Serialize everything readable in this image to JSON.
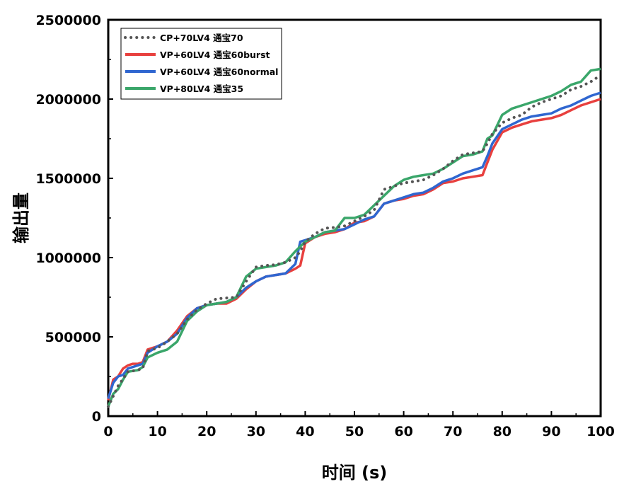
{
  "chart_data": {
    "type": "line",
    "xlabel": "时间 (s)",
    "ylabel": "输出量",
    "xlim": [
      0,
      100
    ],
    "ylim": [
      0,
      2500000
    ],
    "xticks": [
      "0",
      "10",
      "20",
      "30",
      "40",
      "50",
      "60",
      "70",
      "80",
      "90",
      "100"
    ],
    "yticks": [
      "0",
      "500000",
      "1000000",
      "1500000",
      "2000000",
      "2500000"
    ],
    "grid": false,
    "legend_position": "top-left",
    "series": [
      {
        "name": "CP+70LV4 通宝70",
        "color": "#555555",
        "style": "dotted",
        "x": [
          0,
          2,
          4,
          6,
          7,
          8,
          10,
          12,
          14,
          16,
          18,
          20,
          22,
          24,
          26,
          28,
          30,
          32,
          34,
          36,
          38,
          39,
          40,
          42,
          44,
          46,
          48,
          50,
          52,
          54,
          56,
          58,
          60,
          62,
          64,
          66,
          68,
          70,
          72,
          74,
          76,
          77,
          78,
          80,
          82,
          84,
          86,
          88,
          90,
          92,
          94,
          96,
          98,
          100
        ],
        "y": [
          60000,
          190000,
          280000,
          290000,
          300000,
          410000,
          430000,
          470000,
          520000,
          610000,
          670000,
          710000,
          740000,
          745000,
          750000,
          850000,
          940000,
          950000,
          955000,
          970000,
          1000000,
          1040000,
          1100000,
          1150000,
          1185000,
          1190000,
          1200000,
          1230000,
          1260000,
          1300000,
          1430000,
          1450000,
          1470000,
          1480000,
          1490000,
          1520000,
          1560000,
          1610000,
          1650000,
          1660000,
          1670000,
          1720000,
          1780000,
          1850000,
          1880000,
          1900000,
          1950000,
          1980000,
          2000000,
          2020000,
          2060000,
          2080000,
          2110000,
          2150000
        ]
      },
      {
        "name": "VP+60LV4 通宝60burst",
        "color": "#e8403e",
        "style": "solid",
        "x": [
          0,
          1,
          2,
          3,
          4,
          5,
          6,
          7,
          8,
          10,
          12,
          14,
          16,
          18,
          20,
          22,
          24,
          26,
          28,
          30,
          32,
          34,
          36,
          38,
          39,
          40,
          42,
          44,
          46,
          48,
          50,
          52,
          54,
          56,
          58,
          60,
          62,
          64,
          66,
          68,
          70,
          72,
          74,
          76,
          77,
          78,
          80,
          82,
          84,
          86,
          88,
          90,
          92,
          94,
          96,
          98,
          100
        ],
        "y": [
          100000,
          230000,
          250000,
          300000,
          320000,
          330000,
          330000,
          340000,
          420000,
          440000,
          470000,
          540000,
          630000,
          680000,
          700000,
          710000,
          710000,
          740000,
          800000,
          850000,
          880000,
          890000,
          900000,
          930000,
          950000,
          1090000,
          1130000,
          1150000,
          1160000,
          1180000,
          1220000,
          1230000,
          1260000,
          1340000,
          1360000,
          1370000,
          1390000,
          1400000,
          1430000,
          1470000,
          1480000,
          1500000,
          1510000,
          1520000,
          1600000,
          1680000,
          1790000,
          1820000,
          1840000,
          1860000,
          1870000,
          1880000,
          1900000,
          1930000,
          1960000,
          1980000,
          2000000
        ]
      },
      {
        "name": "VP+60LV4 通宝60normal",
        "color": "#2f66d0",
        "style": "solid",
        "x": [
          0,
          1,
          2,
          3,
          4,
          6,
          7,
          8,
          10,
          12,
          14,
          16,
          18,
          20,
          22,
          24,
          26,
          28,
          30,
          32,
          34,
          36,
          38,
          39,
          40,
          42,
          44,
          46,
          48,
          50,
          52,
          54,
          56,
          58,
          60,
          62,
          64,
          66,
          68,
          70,
          72,
          74,
          76,
          77,
          78,
          80,
          82,
          84,
          86,
          88,
          90,
          92,
          94,
          96,
          98,
          100
        ],
        "y": [
          110000,
          210000,
          250000,
          260000,
          300000,
          320000,
          330000,
          400000,
          440000,
          470000,
          520000,
          620000,
          680000,
          700000,
          710000,
          720000,
          750000,
          810000,
          850000,
          880000,
          890000,
          900000,
          960000,
          1100000,
          1110000,
          1130000,
          1160000,
          1170000,
          1180000,
          1210000,
          1240000,
          1260000,
          1340000,
          1360000,
          1380000,
          1400000,
          1410000,
          1440000,
          1480000,
          1500000,
          1530000,
          1550000,
          1570000,
          1640000,
          1720000,
          1810000,
          1840000,
          1870000,
          1890000,
          1900000,
          1910000,
          1940000,
          1960000,
          1990000,
          2020000,
          2040000
        ]
      },
      {
        "name": "VP+80LV4 通宝35",
        "color": "#3aa66a",
        "style": "solid",
        "x": [
          0,
          1,
          2,
          3,
          4,
          6,
          7,
          8,
          10,
          12,
          14,
          16,
          18,
          20,
          22,
          24,
          26,
          28,
          30,
          32,
          34,
          36,
          38,
          40,
          42,
          44,
          46,
          48,
          50,
          52,
          54,
          56,
          58,
          60,
          62,
          64,
          66,
          68,
          70,
          72,
          74,
          76,
          77,
          78,
          80,
          82,
          84,
          86,
          88,
          90,
          92,
          94,
          96,
          98,
          100
        ],
        "y": [
          60000,
          140000,
          170000,
          230000,
          280000,
          290000,
          310000,
          370000,
          400000,
          420000,
          470000,
          600000,
          660000,
          700000,
          710000,
          720000,
          750000,
          880000,
          930000,
          940000,
          950000,
          970000,
          1040000,
          1100000,
          1130000,
          1160000,
          1170000,
          1250000,
          1250000,
          1270000,
          1330000,
          1390000,
          1450000,
          1490000,
          1510000,
          1520000,
          1530000,
          1560000,
          1600000,
          1640000,
          1650000,
          1670000,
          1750000,
          1770000,
          1900000,
          1940000,
          1960000,
          1980000,
          2000000,
          2020000,
          2050000,
          2090000,
          2110000,
          2180000,
          2190000
        ]
      }
    ]
  }
}
